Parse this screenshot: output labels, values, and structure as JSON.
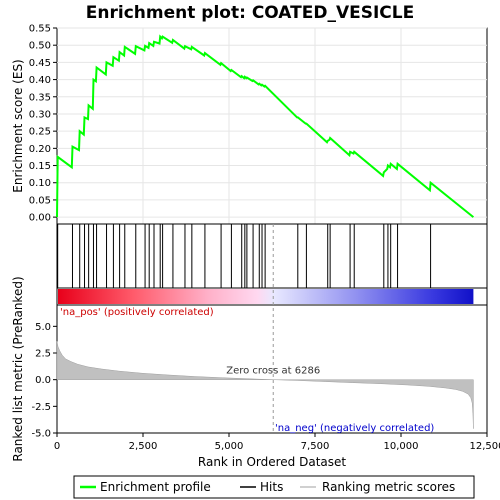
{
  "chart_data": {
    "type": "line",
    "title": "Enrichment plot: COATED_VESICLE",
    "x_label": "Rank in Ordered Dataset",
    "es_ylabel": "Enrichment score (ES)",
    "metric_ylabel": "Ranked list metric (PreRanked)",
    "x_range": [
      0,
      12500
    ],
    "x_ticks": [
      0,
      2500,
      5000,
      7500,
      10000,
      12500
    ],
    "x_tick_labels": [
      "0",
      "2,500",
      "5,000",
      "7,500",
      "10,000",
      "12,500"
    ],
    "es_range": [
      -0.02,
      0.55
    ],
    "es_ticks": [
      0.0,
      0.05,
      0.1,
      0.15,
      0.2,
      0.25,
      0.3,
      0.35,
      0.4,
      0.45,
      0.5,
      0.55
    ],
    "es_tick_labels": [
      "0.00",
      "0.05",
      "0.10",
      "0.15",
      "0.20",
      "0.25",
      "0.30",
      "0.35",
      "0.40",
      "0.45",
      "0.50",
      "0.55"
    ],
    "metric_range": [
      -5,
      7
    ],
    "metric_ticks": [
      -5.0,
      -2.5,
      0.0,
      2.5,
      5.0
    ],
    "metric_tick_labels": [
      "-5.0",
      "-2.5",
      "0.0",
      "2.5",
      "5.0"
    ],
    "dataset_size": 12106,
    "zero_cross": 6286,
    "zero_cross_label": "Zero cross at 6286",
    "pos_label": "'na_pos' (positively correlated)",
    "neg_label": "'na_neg' (negatively correlated)",
    "series": [
      {
        "name": "Enrichment profile",
        "color": "#00ff00",
        "x": [
          0,
          20,
          430,
          450,
          640,
          660,
          780,
          800,
          900,
          920,
          1040,
          1060,
          1130,
          1150,
          1420,
          1440,
          1620,
          1640,
          1800,
          1820,
          1950,
          1970,
          2270,
          2290,
          2540,
          2560,
          2660,
          2680,
          2800,
          2820,
          2980,
          3000,
          3050,
          3070,
          3350,
          3370,
          3700,
          3720,
          3900,
          3920,
          4280,
          4300,
          4750,
          4770,
          5050,
          5070,
          5350,
          5370,
          5440,
          5460,
          5500,
          5520,
          5680,
          5700,
          5860,
          5880,
          5940,
          5960,
          6030,
          6050,
          6980,
          7000,
          7230,
          7250,
          7850,
          7870,
          7920,
          7940,
          8500,
          8520,
          8620,
          8640,
          9480,
          9500,
          9600,
          9620,
          9680,
          9700,
          9880,
          9900,
          10840,
          10860,
          12106
        ],
        "y": [
          0.0,
          0.175,
          0.145,
          0.205,
          0.195,
          0.25,
          0.24,
          0.29,
          0.285,
          0.325,
          0.315,
          0.4,
          0.395,
          0.435,
          0.415,
          0.45,
          0.44,
          0.465,
          0.455,
          0.48,
          0.47,
          0.495,
          0.475,
          0.497,
          0.485,
          0.498,
          0.492,
          0.506,
          0.498,
          0.51,
          0.505,
          0.525,
          0.52,
          0.525,
          0.507,
          0.515,
          0.49,
          0.497,
          0.488,
          0.495,
          0.47,
          0.477,
          0.443,
          0.448,
          0.425,
          0.428,
          0.407,
          0.41,
          0.404,
          0.408,
          0.404,
          0.406,
          0.396,
          0.398,
          0.386,
          0.388,
          0.383,
          0.385,
          0.38,
          0.382,
          0.29,
          0.29,
          0.272,
          0.272,
          0.218,
          0.222,
          0.225,
          0.23,
          0.18,
          0.19,
          0.185,
          0.19,
          0.12,
          0.13,
          0.14,
          0.15,
          0.145,
          0.155,
          0.14,
          0.155,
          0.078,
          0.1,
          0.0
        ]
      },
      {
        "name": "Hits",
        "color": "#000000",
        "x": [
          20,
          450,
          660,
          800,
          920,
          1060,
          1150,
          1440,
          1640,
          1820,
          1970,
          2290,
          2560,
          2680,
          2820,
          3000,
          3070,
          3370,
          3720,
          3920,
          4300,
          4770,
          5070,
          5370,
          5460,
          5520,
          5700,
          5880,
          5960,
          6050,
          7000,
          7250,
          7870,
          7940,
          8520,
          8640,
          9500,
          9620,
          9700,
          9900,
          10860
        ]
      },
      {
        "name": "Ranking metric scores",
        "color": "#c0c0c0",
        "x": [
          0,
          30,
          80,
          150,
          250,
          400,
          600,
          900,
          1300,
          1800,
          2500,
          3200,
          4000,
          4800,
          5600,
          6286,
          7000,
          7800,
          8600,
          9400,
          10200,
          10800,
          11300,
          11600,
          11800,
          11950,
          12030,
          12070,
          12090,
          12106
        ],
        "y": [
          3.6,
          3.1,
          2.7,
          2.3,
          1.95,
          1.7,
          1.45,
          1.2,
          1.0,
          0.8,
          0.6,
          0.45,
          0.3,
          0.18,
          0.08,
          0.0,
          -0.08,
          -0.18,
          -0.28,
          -0.38,
          -0.5,
          -0.62,
          -0.78,
          -0.92,
          -1.1,
          -1.35,
          -1.7,
          -2.2,
          -3.2,
          -4.6
        ]
      }
    ],
    "legend": {
      "placement": "bottom",
      "entries": [
        "Enrichment profile",
        "Hits",
        "Ranking metric scores"
      ]
    }
  }
}
